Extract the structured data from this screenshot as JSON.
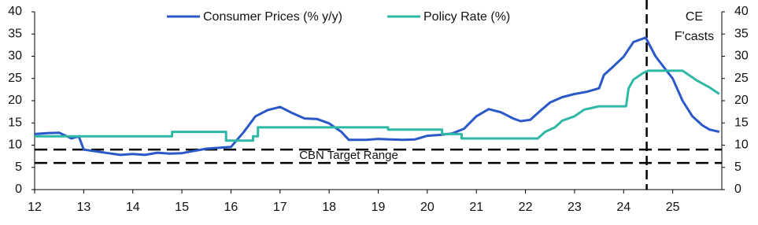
{
  "chart_data": {
    "type": "line",
    "xlim": [
      12,
      26
    ],
    "xticks": [
      12,
      13,
      14,
      15,
      16,
      17,
      18,
      19,
      20,
      21,
      22,
      23,
      24,
      25
    ],
    "ylim": [
      0,
      40
    ],
    "yticks": [
      0,
      5,
      10,
      15,
      20,
      25,
      30,
      35,
      40
    ],
    "y2lim": [
      0,
      40
    ],
    "y2ticks": [
      0,
      5,
      10,
      15,
      20,
      25,
      30,
      35,
      40
    ],
    "hlines": [
      6,
      9
    ],
    "vline": 24.47,
    "annotations": [
      "CBN Target Range",
      "CE",
      "F'casts"
    ],
    "legend": "top",
    "series": [
      {
        "name": "Consumer Prices (% y/y)",
        "color": "#2b58c8",
        "x": [
          12.0,
          12.25,
          12.5,
          12.75,
          12.9,
          13.0,
          13.25,
          13.5,
          13.75,
          14.0,
          14.25,
          14.5,
          14.75,
          15.0,
          15.25,
          15.5,
          15.75,
          16.0,
          16.25,
          16.5,
          16.75,
          17.0,
          17.25,
          17.5,
          17.75,
          18.0,
          18.25,
          18.4,
          18.75,
          19.0,
          19.25,
          19.5,
          19.75,
          20.0,
          20.25,
          20.5,
          20.75,
          21.0,
          21.25,
          21.5,
          21.75,
          21.9,
          22.1,
          22.3,
          22.5,
          22.75,
          23.0,
          23.25,
          23.5,
          23.6,
          23.75,
          24.0,
          24.2,
          24.45,
          24.65,
          24.8,
          25.0,
          25.2,
          25.4,
          25.6,
          25.75,
          25.95
        ],
        "values": [
          12.5,
          12.7,
          12.8,
          11.5,
          12.0,
          9.0,
          8.6,
          8.2,
          7.8,
          8.0,
          7.8,
          8.3,
          8.1,
          8.2,
          8.7,
          9.2,
          9.4,
          9.6,
          12.8,
          16.5,
          17.9,
          18.6,
          17.2,
          16.0,
          15.9,
          14.9,
          13.0,
          11.2,
          11.2,
          11.4,
          11.3,
          11.2,
          11.3,
          12.1,
          12.3,
          12.6,
          13.7,
          16.5,
          18.1,
          17.4,
          16.0,
          15.4,
          15.7,
          17.7,
          19.6,
          20.8,
          21.5,
          22.0,
          22.8,
          25.8,
          27.3,
          29.9,
          33.2,
          34.2,
          30.0,
          27.8,
          25.0,
          20.0,
          16.5,
          14.5,
          13.5,
          13.0
        ]
      },
      {
        "name": "Policy Rate (%)",
        "color": "#2fb8a6",
        "x": [
          12.0,
          14.8,
          14.8,
          15.9,
          15.9,
          16.45,
          16.45,
          16.55,
          16.55,
          19.2,
          19.2,
          20.3,
          20.3,
          20.7,
          20.7,
          22.25,
          22.4,
          22.6,
          22.75,
          23.0,
          23.2,
          23.5,
          24.05,
          24.1,
          24.2,
          24.4,
          24.5,
          25.2,
          25.3,
          25.5,
          25.75,
          25.95
        ],
        "values": [
          12,
          12,
          13,
          13,
          11,
          11,
          12,
          12,
          14,
          14,
          13.5,
          13.5,
          12.5,
          12.5,
          11.5,
          11.5,
          13,
          14,
          15.5,
          16.5,
          18,
          18.75,
          18.75,
          22.75,
          24.75,
          26.25,
          26.75,
          26.75,
          26,
          24.5,
          23,
          21.5
        ]
      }
    ]
  }
}
